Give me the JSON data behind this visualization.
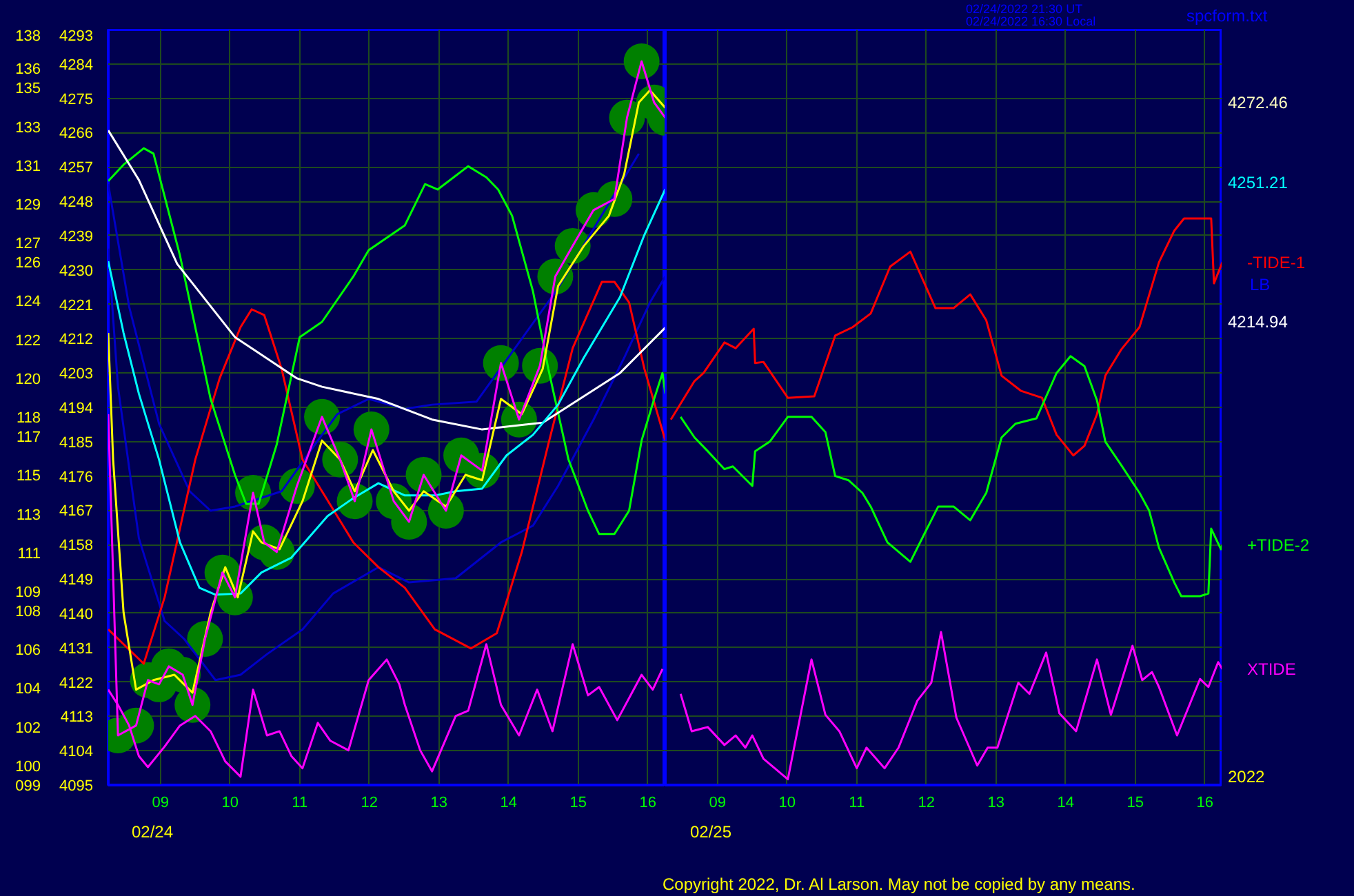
{
  "chart_data": [
    {
      "type": "line",
      "xlim": [
        8.25,
        16.25
      ],
      "ylim": [
        4095,
        4293
      ],
      "xticks": [
        {
          "value": 9,
          "label": "09"
        },
        {
          "value": 10,
          "label": "10"
        },
        {
          "value": 11,
          "label": "11"
        },
        {
          "value": 12,
          "label": "12"
        },
        {
          "value": 13,
          "label": "13"
        },
        {
          "value": 14,
          "label": "14"
        },
        {
          "value": 15,
          "label": "15"
        },
        {
          "value": 16,
          "label": "16"
        }
      ],
      "yticks": [
        4095,
        4104,
        4113,
        4122,
        4131,
        4140,
        4149,
        4158,
        4167,
        4176,
        4185,
        4194,
        4203,
        4212,
        4221,
        4230,
        4239,
        4248,
        4257,
        4266,
        4275,
        4284,
        4293
      ],
      "y2lim": [
        99,
        138
      ],
      "y2ticks": [
        {
          "value": 99,
          "label": "099"
        },
        100,
        102,
        104,
        106,
        108,
        109,
        111,
        113,
        115,
        117,
        118,
        120,
        122,
        124,
        126,
        127,
        129,
        131,
        133,
        135,
        136,
        138
      ],
      "grid": true,
      "series": [
        {
          "type": "scatter",
          "marker": "circle",
          "color": "#008000",
          "x": [
            8.39,
            8.65,
            8.82,
            8.98,
            9.12,
            9.32,
            9.46,
            9.64,
            9.89,
            10.07,
            10.33,
            10.49,
            10.67,
            10.96,
            11.32,
            11.58,
            11.79,
            12.03,
            12.35,
            12.57,
            12.78,
            13.1,
            13.32,
            13.62,
            13.89,
            14.15,
            14.45,
            14.67,
            14.92,
            15.22,
            15.52,
            15.7,
            15.91,
            16.09,
            16.25
          ],
          "values": [
            4108.0,
            4110.6,
            4122.5,
            4121.4,
            4126.1,
            4123.9,
            4116.0,
            4133.3,
            4150.7,
            4144.2,
            4171.6,
            4158.6,
            4156.1,
            4173.4,
            4191.5,
            4180.3,
            4169.4,
            4188.2,
            4169.4,
            4164.0,
            4176.3,
            4166.9,
            4181.4,
            4177.4,
            4205.6,
            4190.8,
            4204.9,
            4228.3,
            4236.3,
            4245.7,
            4248.6,
            4269.9,
            4284.7,
            4273.9,
            4269.9
          ]
        },
        {
          "color": "#0000c8",
          "x": [
            8.25,
            8.55,
            8.98,
            9.42,
            9.72,
            10.07,
            10.74,
            11.26,
            11.54,
            11.99,
            12.51,
            12.9,
            13.54,
            14.69,
            15.87
          ],
          "values": [
            4252.5,
            4220.4,
            4189.7,
            4172.0,
            4166.9,
            4168.0,
            4172.0,
            4185.3,
            4192.2,
            4196.2,
            4193.6,
            4194.7,
            4195.5,
            4224.7,
            4260.5
          ]
        },
        {
          "color": "#0000c8",
          "x": [
            8.25,
            8.39,
            8.69,
            9.06,
            9.34,
            9.79,
            10.15,
            10.53,
            11.04,
            11.48,
            12.13,
            12.57,
            13.24,
            13.89,
            14.35,
            14.71,
            15.22,
            15.66,
            16.03,
            16.25
          ],
          "values": [
            4235.6,
            4199.4,
            4159.7,
            4138.0,
            4133.3,
            4122.5,
            4123.9,
            4129.3,
            4135.8,
            4145.2,
            4152.1,
            4148.1,
            4149.2,
            4158.6,
            4163.0,
            4173.4,
            4190.8,
            4207.0,
            4221.5,
            4228.3
          ]
        },
        {
          "color": "#ff0000",
          "x": [
            8.25,
            8.76,
            9.06,
            9.5,
            9.85,
            10.15,
            10.31,
            10.49,
            10.74,
            11.04,
            11.32,
            11.77,
            12.13,
            12.51,
            12.94,
            13.46,
            13.83,
            14.19,
            14.57,
            14.92,
            15.34,
            15.52,
            15.73,
            15.95,
            16.25
          ],
          "values": [
            4135.8,
            4126.8,
            4144.2,
            4180.3,
            4201.6,
            4215.0,
            4219.7,
            4218.2,
            4204.1,
            4180.3,
            4172.0,
            4158.6,
            4152.1,
            4146.7,
            4135.8,
            4130.8,
            4134.8,
            4156.1,
            4184.3,
            4209.5,
            4226.9,
            4226.9,
            4221.5,
            4204.1,
            4185.3
          ]
        },
        {
          "color": "#00ff00",
          "x": [
            8.25,
            8.47,
            8.76,
            8.9,
            9.28,
            9.72,
            10.07,
            10.23,
            10.41,
            10.67,
            11.0,
            11.32,
            11.77,
            11.99,
            12.51,
            12.8,
            12.98,
            13.42,
            13.68,
            13.85,
            14.05,
            14.35,
            14.57,
            14.86,
            15.14,
            15.3,
            15.52,
            15.73,
            15.91,
            16.09,
            16.21,
            16.25
          ],
          "values": [
            4253.3,
            4257.6,
            4261.9,
            4260.5,
            4233.8,
            4196.2,
            4176.3,
            4168.7,
            4168.7,
            4184.3,
            4212.4,
            4216.4,
            4228.3,
            4235.2,
            4241.7,
            4252.5,
            4251.1,
            4257.2,
            4254.3,
            4251.1,
            4244.2,
            4224.4,
            4204.1,
            4180.3,
            4166.9,
            4160.8,
            4160.8,
            4166.9,
            4185.3,
            4196.2,
            4203.0,
            4197.6
          ]
        },
        {
          "color": "#ffffff",
          "x": [
            8.25,
            8.69,
            9.24,
            10.07,
            10.96,
            11.32,
            12.13,
            12.9,
            13.62,
            14.49,
            15.6,
            16.25
          ],
          "values": [
            4266.6,
            4253.6,
            4231.6,
            4212.4,
            4201.6,
            4199.4,
            4196.2,
            4190.8,
            4188.2,
            4190.0,
            4203.0,
            4214.9
          ]
        },
        {
          "color": "#00ffff",
          "x": [
            8.25,
            8.47,
            8.69,
            8.98,
            9.28,
            9.56,
            9.79,
            10.15,
            10.45,
            10.88,
            11.4,
            11.77,
            12.13,
            12.51,
            12.94,
            13.24,
            13.62,
            13.97,
            14.35,
            14.71,
            15.08,
            15.6,
            15.95,
            16.25
          ],
          "values": [
            4232.3,
            4213.5,
            4197.6,
            4180.3,
            4158.6,
            4146.7,
            4144.9,
            4145.2,
            4150.7,
            4154.6,
            4165.5,
            4170.2,
            4174.1,
            4170.9,
            4170.9,
            4172.0,
            4172.7,
            4181.4,
            4186.8,
            4194.7,
            4207.0,
            4222.9,
            4239.2,
            4251.2
          ]
        },
        {
          "color": "#ff00ff",
          "x": [
            8.25,
            8.39,
            8.55,
            8.69,
            8.82,
            9.06,
            9.28,
            9.5,
            9.72,
            9.93,
            10.15,
            10.33,
            10.53,
            10.71,
            10.88,
            11.04,
            11.26,
            11.44,
            11.7,
            11.99,
            12.25,
            12.43,
            12.51,
            12.73,
            12.9,
            13.24,
            13.42,
            13.68,
            13.89,
            14.15,
            14.41,
            14.63,
            14.92,
            15.14,
            15.3,
            15.56,
            15.91,
            16.07,
            16.21
          ],
          "values": [
            4120.0,
            4116.0,
            4110.6,
            4102.6,
            4099.7,
            4105.1,
            4110.6,
            4113.1,
            4109.1,
            4101.2,
            4097.2,
            4120.0,
            4108.0,
            4109.1,
            4102.6,
            4099.4,
            4111.3,
            4106.6,
            4104.1,
            4122.5,
            4127.9,
            4121.4,
            4116.0,
            4104.1,
            4098.6,
            4113.1,
            4114.5,
            4131.9,
            4116.0,
            4108.0,
            4120.0,
            4109.1,
            4131.9,
            4118.5,
            4120.7,
            4112.0,
            4123.9,
            4120.0,
            4125.4
          ]
        },
        {
          "color": "#ffff00",
          "x": [
            8.25,
            8.32,
            8.47,
            8.65,
            8.9,
            9.2,
            9.46,
            9.72,
            9.93,
            10.11,
            10.33,
            10.45,
            10.71,
            11.04,
            11.32,
            11.58,
            11.79,
            12.05,
            12.35,
            12.57,
            12.78,
            13.1,
            13.38,
            13.62,
            13.89,
            14.19,
            14.49,
            14.71,
            15.08,
            15.44,
            15.66,
            15.87,
            16.03,
            16.25
          ],
          "values": [
            4213.5,
            4180.3,
            4140.2,
            4120.0,
            4122.5,
            4123.9,
            4119.2,
            4140.2,
            4152.1,
            4144.2,
            4161.5,
            4158.6,
            4156.8,
            4169.4,
            4185.3,
            4180.3,
            4172.0,
            4182.8,
            4172.0,
            4166.9,
            4172.0,
            4168.0,
            4176.3,
            4174.9,
            4196.2,
            4192.2,
            4204.1,
            4225.8,
            4236.3,
            4244.2,
            4255.1,
            4273.9,
            4277.1,
            4272.5
          ]
        },
        {
          "color": "#ff00ff",
          "x": [
            8.25,
            8.39,
            8.65,
            8.82,
            8.98,
            9.12,
            9.32,
            9.46,
            9.64,
            9.89,
            10.07,
            10.33,
            10.49,
            10.67,
            10.96,
            11.32,
            11.58,
            11.79,
            12.03,
            12.35,
            12.57,
            12.78,
            13.1,
            13.32,
            13.62,
            13.89,
            14.15,
            14.45,
            14.67,
            14.92,
            15.22,
            15.52,
            15.7,
            15.91,
            16.09,
            16.25
          ],
          "values": [
            4192.2,
            4108.0,
            4110.6,
            4122.5,
            4121.4,
            4126.1,
            4123.9,
            4116.0,
            4133.3,
            4150.7,
            4144.2,
            4171.6,
            4158.6,
            4156.1,
            4173.4,
            4191.5,
            4180.3,
            4169.4,
            4188.2,
            4169.4,
            4164.0,
            4176.3,
            4166.9,
            4181.4,
            4177.4,
            4205.6,
            4190.8,
            4204.9,
            4228.3,
            4236.3,
            4245.7,
            4248.6,
            4269.9,
            4284.7,
            4273.9,
            4269.9
          ]
        }
      ],
      "annotations": [
        "02/24/2022 21:30 UT",
        "02/24/2022 16:30 Local",
        "spcform.txt",
        "Copyright 2022, Dr. Al Larson. May not be copied by any means.",
        "4272.46",
        "4251.21",
        "4214.94",
        "LB",
        "02/24"
      ]
    },
    {
      "type": "line",
      "xlim": [
        8.25,
        16.25
      ],
      "ylim": [
        4095,
        4293
      ],
      "tick_labels": "x",
      "xticks": [
        {
          "value": 9,
          "label": "09"
        },
        {
          "value": 10,
          "label": "10"
        },
        {
          "value": 11,
          "label": "11"
        },
        {
          "value": 12,
          "label": "12"
        },
        {
          "value": 13,
          "label": "13"
        },
        {
          "value": 14,
          "label": "14"
        },
        {
          "value": 15,
          "label": "15"
        },
        {
          "value": 16,
          "label": "16"
        }
      ],
      "yticks": [
        4095,
        4104,
        4113,
        4122,
        4131,
        4140,
        4149,
        4158,
        4167,
        4176,
        4185,
        4194,
        4203,
        4212,
        4221,
        4230,
        4239,
        4248,
        4257,
        4266,
        4275,
        4284,
        4293
      ],
      "grid": true,
      "series": [
        {
          "name": "-TIDE-1",
          "color": "#ff0000",
          "x": [
            8.33,
            8.67,
            8.8,
            9.1,
            9.26,
            9.52,
            9.54,
            9.66,
            10.01,
            10.39,
            10.69,
            10.94,
            11.2,
            11.48,
            11.77,
            12.13,
            12.39,
            12.63,
            12.86,
            13.08,
            13.36,
            13.66,
            13.87,
            14.11,
            14.27,
            14.45,
            14.57,
            14.8,
            15.06,
            15.34,
            15.56,
            15.7,
            15.95,
            16.09,
            16.13,
            16.25
          ],
          "values": [
            4190.8,
            4200.9,
            4203.0,
            4211.0,
            4209.5,
            4214.6,
            4205.6,
            4205.9,
            4196.5,
            4196.9,
            4212.8,
            4215.0,
            4218.6,
            4230.9,
            4234.8,
            4220.0,
            4220.0,
            4223.6,
            4216.8,
            4202.3,
            4198.3,
            4196.5,
            4186.8,
            4181.4,
            4183.9,
            4192.2,
            4202.3,
            4209.2,
            4215.0,
            4232.0,
            4240.3,
            4243.5,
            4243.5,
            4243.5,
            4226.5,
            4232.0
          ]
        },
        {
          "name": "+TIDE-2",
          "color": "#00ff00",
          "x": [
            8.47,
            8.67,
            8.86,
            9.1,
            9.22,
            9.5,
            9.54,
            9.75,
            10.01,
            10.35,
            10.55,
            10.69,
            10.88,
            11.08,
            11.2,
            11.44,
            11.77,
            11.97,
            12.17,
            12.39,
            12.63,
            12.86,
            13.08,
            13.28,
            13.58,
            13.87,
            14.07,
            14.27,
            14.45,
            14.57,
            14.8,
            15.06,
            15.2,
            15.34,
            15.56,
            15.66,
            15.93,
            16.05,
            16.09,
            16.23,
            16.25
          ],
          "values": [
            4191.5,
            4186.1,
            4182.5,
            4177.8,
            4178.5,
            4173.4,
            4182.5,
            4185.0,
            4191.5,
            4191.5,
            4187.5,
            4176.0,
            4174.9,
            4171.6,
            4168.0,
            4158.6,
            4153.5,
            4160.8,
            4168.0,
            4168.0,
            4164.4,
            4171.6,
            4186.1,
            4189.7,
            4191.1,
            4203.0,
            4207.4,
            4204.8,
            4195.8,
            4185.0,
            4178.8,
            4171.6,
            4166.9,
            4157.2,
            4148.1,
            4144.5,
            4144.5,
            4145.2,
            4162.2,
            4156.8,
            4157.9
          ]
        },
        {
          "name": "XTIDE",
          "color": "#ff00ff",
          "x": [
            8.47,
            8.63,
            8.86,
            9.1,
            9.26,
            9.4,
            9.5,
            9.66,
            10.01,
            10.35,
            10.55,
            10.75,
            11.0,
            11.14,
            11.4,
            11.6,
            11.87,
            12.07,
            12.21,
            12.43,
            12.73,
            12.88,
            13.02,
            13.32,
            13.48,
            13.72,
            13.91,
            14.15,
            14.45,
            14.65,
            14.96,
            15.1,
            15.24,
            15.34,
            15.6,
            15.93,
            16.05,
            16.19,
            16.25
          ],
          "values": [
            4118.9,
            4109.1,
            4110.2,
            4105.5,
            4108.0,
            4104.8,
            4108.0,
            4101.9,
            4096.5,
            4127.9,
            4113.4,
            4109.1,
            4099.4,
            4104.8,
            4099.4,
            4104.8,
            4117.1,
            4121.8,
            4135.1,
            4112.7,
            4100.1,
            4104.8,
            4104.8,
            4121.8,
            4118.9,
            4129.7,
            4113.8,
            4109.1,
            4127.9,
            4113.4,
            4131.5,
            4122.5,
            4124.6,
            4120.7,
            4108.0,
            4122.8,
            4120.7,
            4127.2,
            4125.4
          ]
        }
      ],
      "annotations": [
        "2022",
        "02/25"
      ]
    }
  ]
}
